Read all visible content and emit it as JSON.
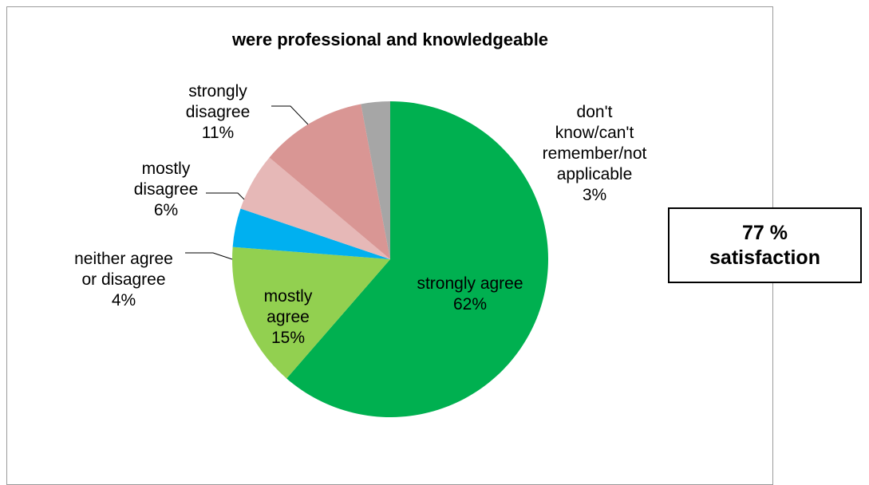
{
  "chart_data": {
    "type": "pie",
    "title": "were professional and knowledgeable",
    "slices": [
      {
        "label_lines": [
          "strongly agree"
        ],
        "pct_label": "62%",
        "value": 62,
        "color": "#00b050"
      },
      {
        "label_lines": [
          "mostly",
          "agree"
        ],
        "pct_label": "15%",
        "value": 15,
        "color": "#92d050"
      },
      {
        "label_lines": [
          "neither agree",
          "or disagree"
        ],
        "pct_label": "4%",
        "value": 4,
        "color": "#00b0f0"
      },
      {
        "label_lines": [
          "mostly",
          "disagree"
        ],
        "pct_label": "6%",
        "value": 6,
        "color": "#e6b8b7"
      },
      {
        "label_lines": [
          "strongly",
          "disagree"
        ],
        "pct_label": "11%",
        "value": 11,
        "color": "#d99694"
      },
      {
        "label_lines": [
          "don't",
          "know/can't",
          "remember/not",
          "applicable"
        ],
        "pct_label": "3%",
        "value": 3,
        "color": "#a6a6a6"
      }
    ],
    "start_angle": "12 o'clock",
    "direction": "clockwise"
  },
  "callout": {
    "line1": "77 %",
    "line2": "satisfaction"
  }
}
